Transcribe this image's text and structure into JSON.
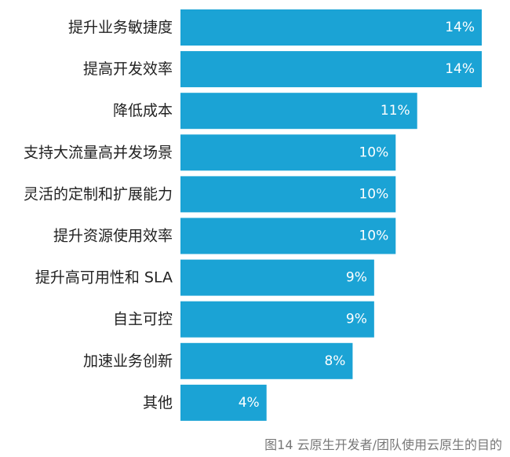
{
  "chart_data": {
    "type": "bar",
    "horizontal": true,
    "categories": [
      "提升业务敏捷度",
      "提高开发效率",
      "降低成本",
      "支持大流量高并发场景",
      "灵活的定制和扩展能力",
      "提升资源使用效率",
      "提升高可用性和 SLA",
      "自主可控",
      "加速业务创新",
      "其他"
    ],
    "values": [
      14,
      14,
      11,
      10,
      10,
      10,
      9,
      9,
      8,
      4
    ],
    "unit": "%",
    "xlim": [
      0,
      14
    ],
    "grid": false,
    "legend": false,
    "bar_color": "#1ba3d5",
    "caption": "图14 云原生开发者/团队使用云原生的目的"
  }
}
